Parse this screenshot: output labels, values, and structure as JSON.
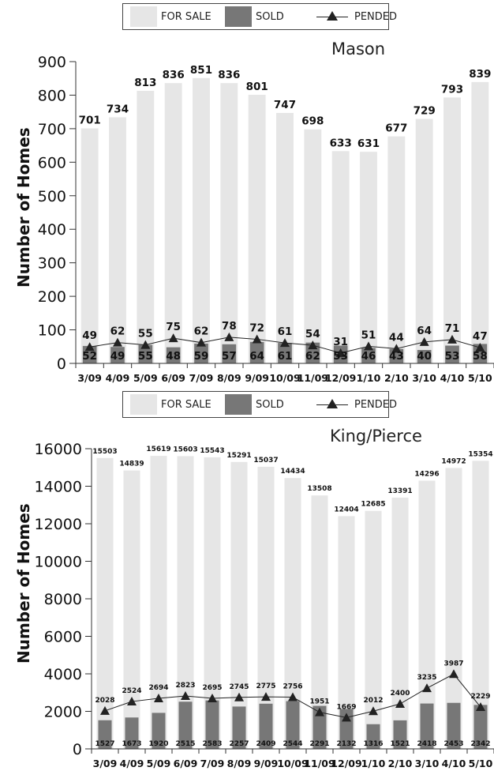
{
  "legend": {
    "for_sale": "FOR SALE",
    "sold": "SOLD",
    "pended": "PENDED"
  },
  "colors": {
    "for_sale": "#e6e6e6",
    "sold": "#777777",
    "pended": "#222222"
  },
  "chart_data": [
    {
      "type": "bar",
      "title": "Mason",
      "ylabel": "Number of Homes",
      "xlabel": "",
      "ylim": [
        0,
        900
      ],
      "yticks": [
        0,
        100,
        200,
        300,
        400,
        500,
        600,
        700,
        800,
        900
      ],
      "categories": [
        "3/09",
        "4/09",
        "5/09",
        "6/09",
        "7/09",
        "8/09",
        "9/09",
        "10/09",
        "11/09",
        "12/09",
        "1/10",
        "2/10",
        "3/10",
        "4/10",
        "5/10"
      ],
      "series": [
        {
          "name": "FOR SALE",
          "kind": "bar",
          "values": [
            701,
            734,
            813,
            836,
            851,
            836,
            801,
            747,
            698,
            633,
            631,
            677,
            729,
            793,
            839
          ]
        },
        {
          "name": "SOLD",
          "kind": "bar",
          "values": [
            52,
            49,
            55,
            48,
            59,
            57,
            64,
            61,
            62,
            53,
            46,
            43,
            40,
            53,
            58
          ]
        },
        {
          "name": "PENDED",
          "kind": "line",
          "values": [
            49,
            62,
            55,
            75,
            62,
            78,
            72,
            61,
            54,
            31,
            51,
            44,
            64,
            71,
            47
          ]
        }
      ],
      "legend_position": "top",
      "grid": false
    },
    {
      "type": "bar",
      "title": "King/Pierce",
      "ylabel": "Number of Homes",
      "xlabel": "",
      "ylim": [
        0,
        16000
      ],
      "yticks": [
        0,
        2000,
        4000,
        6000,
        8000,
        10000,
        12000,
        14000,
        16000
      ],
      "categories": [
        "3/09",
        "4/09",
        "5/09",
        "6/09",
        "7/09",
        "8/09",
        "9/09",
        "10/09",
        "11/09",
        "12/09",
        "1/10",
        "2/10",
        "3/10",
        "4/10",
        "5/10"
      ],
      "series": [
        {
          "name": "FOR SALE",
          "kind": "bar",
          "values": [
            15503,
            14839,
            15619,
            15603,
            15543,
            15291,
            15037,
            14434,
            13508,
            12404,
            12685,
            13391,
            14296,
            14972,
            15354
          ]
        },
        {
          "name": "SOLD",
          "kind": "bar",
          "values": [
            1527,
            1673,
            1920,
            2515,
            2583,
            2257,
            2409,
            2544,
            2291,
            2132,
            1316,
            1521,
            2418,
            2453,
            2342
          ]
        },
        {
          "name": "PENDED",
          "kind": "line",
          "values": [
            2028,
            2524,
            2694,
            2823,
            2695,
            2745,
            2775,
            2756,
            1951,
            1669,
            2012,
            2400,
            3235,
            3987,
            2229
          ]
        }
      ],
      "legend_position": "top",
      "grid": false
    }
  ]
}
